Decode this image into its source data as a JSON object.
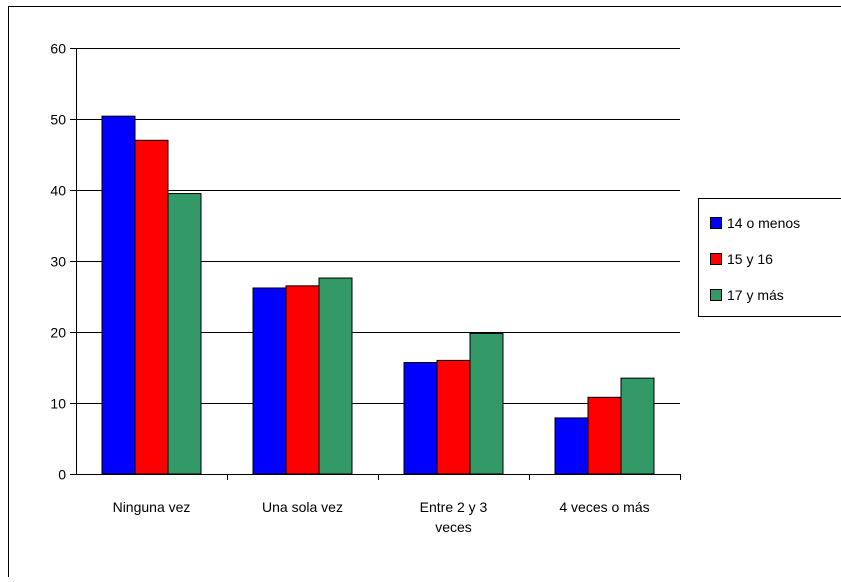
{
  "chart_data": {
    "type": "bar",
    "title": "",
    "xlabel": "",
    "ylabel": "",
    "categories": [
      [
        "Ninguna vez"
      ],
      [
        "Una sola vez"
      ],
      [
        "Entre 2 y 3",
        "veces"
      ],
      [
        "4 veces o más"
      ]
    ],
    "series": [
      {
        "name": "14 o menos",
        "color": "#0000FF",
        "values": [
          50.4,
          26.2,
          15.7,
          7.9
        ]
      },
      {
        "name": "15 y 16",
        "color": "#FF0000",
        "values": [
          47.0,
          26.5,
          16.0,
          10.8
        ]
      },
      {
        "name": "17 y más",
        "color": "#339966",
        "values": [
          39.5,
          27.6,
          19.8,
          13.5
        ]
      }
    ],
    "yticks": [
      0,
      10,
      20,
      30,
      40,
      50,
      60
    ],
    "ylim": [
      0,
      60
    ],
    "grid": true,
    "legend_position": "right"
  }
}
